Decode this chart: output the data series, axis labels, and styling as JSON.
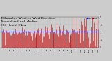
{
  "title_line1": "Milwaukee Weather Wind Direction",
  "title_line2": "Normalized and Median",
  "title_line3": "(24 Hours) (New)",
  "title_fontsize": 3.2,
  "bg_color": "#cccccc",
  "plot_bg_color": "#cccccc",
  "median_value": 0.52,
  "median_color": "#0000ff",
  "bar_color": "#cc0000",
  "legend_bar_color": "#cc0000",
  "legend_line_color": "#0000ff",
  "ylim": [
    0,
    1
  ],
  "n_points": 144,
  "seed": 42,
  "figwidth": 1.6,
  "figheight": 0.87,
  "dpi": 100
}
